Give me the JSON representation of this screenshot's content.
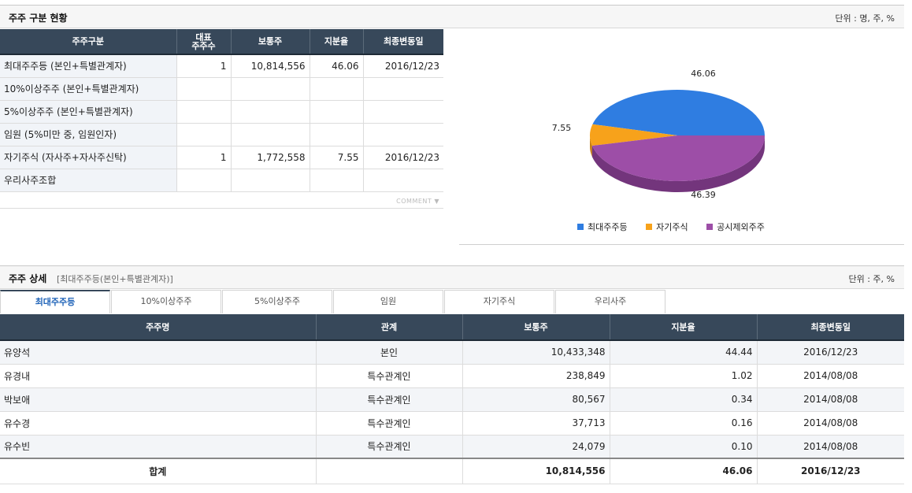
{
  "summary": {
    "title": "주주 구분 현황",
    "unit": "단위 : 명, 주, %",
    "headers": [
      "주주구분",
      "대표\n주주수",
      "보통주",
      "지분율",
      "최종변동일"
    ],
    "rows": [
      {
        "label": "최대주주등 (본인+특별관계자)",
        "count": "1",
        "shares": "10,814,556",
        "ratio": "46.06",
        "date": "2016/12/23"
      },
      {
        "label": "10%이상주주 (본인+특별관계자)",
        "count": "",
        "shares": "",
        "ratio": "",
        "date": ""
      },
      {
        "label": "5%이상주주 (본인+특별관계자)",
        "count": "",
        "shares": "",
        "ratio": "",
        "date": ""
      },
      {
        "label": "임원 (5%미만 중, 임원인자)",
        "count": "",
        "shares": "",
        "ratio": "",
        "date": ""
      },
      {
        "label": "자기주식 (자사주+자사주신탁)",
        "count": "1",
        "shares": "1,772,558",
        "ratio": "7.55",
        "date": "2016/12/23"
      },
      {
        "label": "우리사주조합",
        "count": "",
        "shares": "",
        "ratio": "",
        "date": ""
      }
    ],
    "comment": "COMMENT"
  },
  "chart_data": {
    "type": "pie",
    "title": "",
    "categories": [
      "최대주주등",
      "자기주식",
      "공시제외주주"
    ],
    "values": [
      46.06,
      7.55,
      46.39
    ],
    "labels": [
      "46.06",
      "7.55",
      "46.39"
    ],
    "colors": [
      "#2f7de1",
      "#f7a21b",
      "#9d4ea7"
    ],
    "legend_position": "bottom"
  },
  "detail": {
    "title": "주주 상세",
    "subtitle": "[최대주주등(본인+특별관계자)]",
    "unit": "단위 : 주, %",
    "tabs": [
      "최대주주등",
      "10%이상주주",
      "5%이상주주",
      "임원",
      "자기주식",
      "우리사주"
    ],
    "active_tab": 0,
    "headers": [
      "주주명",
      "관계",
      "보통주",
      "지분율",
      "최종변동일"
    ],
    "rows": [
      {
        "name": "유양석",
        "relation": "본인",
        "shares": "10,433,348",
        "ratio": "44.44",
        "date": "2016/12/23"
      },
      {
        "name": "유경내",
        "relation": "특수관계인",
        "shares": "238,849",
        "ratio": "1.02",
        "date": "2014/08/08"
      },
      {
        "name": "박보애",
        "relation": "특수관계인",
        "shares": "80,567",
        "ratio": "0.34",
        "date": "2014/08/08"
      },
      {
        "name": "유수경",
        "relation": "특수관계인",
        "shares": "37,713",
        "ratio": "0.16",
        "date": "2014/08/08"
      },
      {
        "name": "유수빈",
        "relation": "특수관계인",
        "shares": "24,079",
        "ratio": "0.10",
        "date": "2014/08/08"
      }
    ],
    "total": {
      "label": "합계",
      "shares": "10,814,556",
      "ratio": "46.06",
      "date": "2016/12/23"
    }
  }
}
